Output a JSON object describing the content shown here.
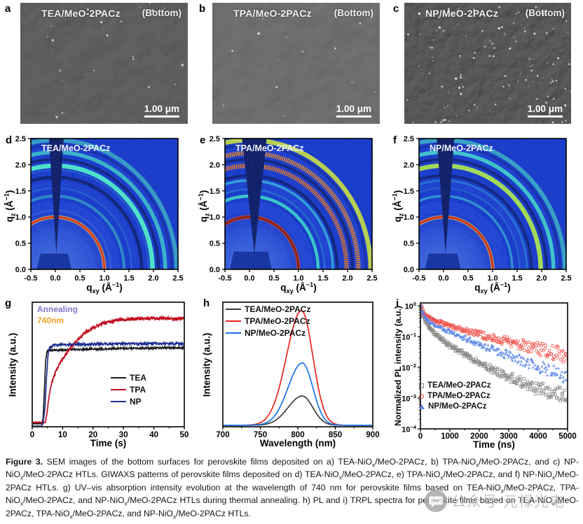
{
  "sem_row": {
    "panels": [
      {
        "letter": "a",
        "title": "TEA/MeO-2PACz",
        "corner": "(Bottom)",
        "scalebar": "1.00 μm",
        "base_freq": 0.028,
        "seed": 4,
        "light": "#8d8d8d",
        "dark": 0.28,
        "specks": 26
      },
      {
        "letter": "b",
        "title": "TPA/MeO-2PACz",
        "corner": "(Bottom)",
        "scalebar": "1.00 μm",
        "base_freq": 0.022,
        "seed": 9,
        "light": "#989898",
        "dark": 0.22,
        "specks": 14
      },
      {
        "letter": "c",
        "title": "NP/MeO-2PACz",
        "corner": "(Bottom)",
        "scalebar": "1.00 μm",
        "base_freq": 0.055,
        "seed": 14,
        "light": "#888888",
        "dark": 0.3,
        "specks": 110
      }
    ]
  },
  "giwaxs_row": {
    "xlabel": "q~xy~ (Å^−1^)",
    "ylabel": "q~z~ (Å^−1^)",
    "xticks": [
      -0.5,
      0.0,
      0.5,
      1.0,
      1.5,
      2.0,
      2.5
    ],
    "yticks": [
      0.0,
      0.5,
      1.0,
      1.5,
      2.0,
      2.5
    ],
    "background": "#1336c8",
    "panels": [
      {
        "letter": "d",
        "title": "TEA/MeO-2PACz",
        "wedge": [
          -0.13,
          0.17
        ],
        "shadow": [
          -0.38,
          0.33,
          0.3
        ],
        "rings": [
          {
            "q": 1.0,
            "c": "#e23000",
            "w": 2.6,
            "o": 1,
            "glow": "#ffc83e"
          },
          {
            "q": 1.13,
            "c": "#3a66d8",
            "w": 2.5,
            "o": 0.45
          },
          {
            "q": 1.4,
            "c": "#3ed2c2",
            "w": 4,
            "o": 0.5
          },
          {
            "q": 1.55,
            "c": "#3390d8",
            "w": 2.5,
            "o": 0.35
          },
          {
            "q": 1.76,
            "c": "#0a1d6e",
            "w": 4.5,
            "o": 0.9
          },
          {
            "q": 1.9,
            "c": "#2fa0d0",
            "w": 2.5,
            "o": 0.3
          },
          {
            "q": 1.98,
            "c": "#4ae8c8",
            "w": 6.5,
            "o": 0.95
          },
          {
            "q": 2.1,
            "c": "#0a1d6e",
            "w": 4,
            "o": 0.85
          },
          {
            "q": 2.24,
            "c": "#41d8c8",
            "w": 5.5,
            "o": 0.75
          },
          {
            "q": 2.37,
            "c": "#0c2080",
            "w": 3,
            "o": 0.6
          },
          {
            "q": 2.47,
            "c": "#3fccc0",
            "w": 6,
            "o": 0.65
          }
        ]
      },
      {
        "letter": "e",
        "title": "TPA/MeO-2PACz",
        "wedge": [
          -0.15,
          0.35
        ],
        "shadow": [
          -0.4,
          0.45,
          0.34
        ],
        "rings": [
          {
            "q": 1.0,
            "c": "#8f1600",
            "w": 2.8,
            "o": 1,
            "glow": "#d84a10"
          },
          {
            "q": 1.4,
            "c": "#37dcc8",
            "w": 4.5,
            "o": 0.85
          },
          {
            "q": 1.53,
            "c": "#2f9fd8",
            "w": 2.5,
            "o": 0.45
          },
          {
            "q": 1.7,
            "c": "#35c8da",
            "w": 3.5,
            "o": 0.7
          },
          {
            "q": 1.79,
            "c": "#0a1d6e",
            "w": 4,
            "o": 0.9
          },
          {
            "q": 1.98,
            "c": "#f07818",
            "w": 6.5,
            "o": 0.95,
            "sp": 1
          },
          {
            "q": 2.1,
            "c": "#0a1d6e",
            "w": 4,
            "o": 0.85
          },
          {
            "q": 2.22,
            "c": "#f08a20",
            "w": 6.5,
            "o": 0.95,
            "sp": 1
          },
          {
            "q": 2.37,
            "c": "#0c2080",
            "w": 3,
            "o": 0.6
          },
          {
            "q": 2.47,
            "c": "#c6de3e",
            "w": 6.5,
            "o": 0.9
          }
        ]
      },
      {
        "letter": "f",
        "title": "NP/MeO-2PACz",
        "wedge": [
          -0.14,
          0.22
        ],
        "shadow": [
          -0.38,
          0.35,
          0.3
        ],
        "rings": [
          {
            "q": 1.0,
            "c": "#d82800",
            "w": 2.6,
            "o": 1,
            "glow": "#ffbe38"
          },
          {
            "q": 1.4,
            "c": "#38c4d4",
            "w": 3.5,
            "o": 0.6
          },
          {
            "q": 1.55,
            "c": "#3390d8",
            "w": 2.5,
            "o": 0.35
          },
          {
            "q": 1.7,
            "c": "#2fa8d8",
            "w": 3,
            "o": 0.45
          },
          {
            "q": 1.79,
            "c": "#0a1d6e",
            "w": 4,
            "o": 0.85
          },
          {
            "q": 1.98,
            "c": "#a6e04c",
            "w": 6.5,
            "o": 0.95
          },
          {
            "q": 2.1,
            "c": "#0a1d6e",
            "w": 4,
            "o": 0.85
          },
          {
            "q": 2.24,
            "c": "#41d8c8",
            "w": 5.5,
            "o": 0.85
          },
          {
            "q": 2.37,
            "c": "#0c2080",
            "w": 3,
            "o": 0.55
          },
          {
            "q": 2.47,
            "c": "#3fc8c0",
            "w": 6,
            "o": 0.7
          }
        ]
      }
    ]
  },
  "chart_data": [
    {
      "panel_letter": "g",
      "type": "line",
      "xlabel": "Time (s)",
      "ylabel": "Intensity (a.u.)",
      "xlim": [
        0,
        50
      ],
      "ylim": [
        0,
        1
      ],
      "xticks": [
        0,
        10,
        20,
        30,
        40,
        50
      ],
      "annotations": [
        {
          "text": "Annealing",
          "color": "#8079cc"
        },
        {
          "text": "740nm",
          "color": "#f5a227"
        }
      ],
      "legend_position": "center-right",
      "series": [
        {
          "name": "TEA",
          "color": "#1c1c1c",
          "noise": 0.007,
          "points": [
            [
              0,
              0.025
            ],
            [
              3.2,
              0.025
            ],
            [
              3.6,
              0.07
            ],
            [
              4,
              0.3
            ],
            [
              4.4,
              0.52
            ],
            [
              4.8,
              0.6
            ],
            [
              5.5,
              0.615
            ],
            [
              8,
              0.615
            ],
            [
              12,
              0.62
            ],
            [
              16,
              0.62
            ],
            [
              20,
              0.625
            ],
            [
              25,
              0.625
            ],
            [
              30,
              0.63
            ],
            [
              35,
              0.63
            ],
            [
              40,
              0.632
            ],
            [
              45,
              0.634
            ],
            [
              50,
              0.634
            ]
          ]
        },
        {
          "name": "TPA",
          "color": "#c00a1e",
          "noise": 0.011,
          "points": [
            [
              0,
              0.035
            ],
            [
              4.3,
              0.035
            ],
            [
              4.8,
              0.1
            ],
            [
              5.4,
              0.22
            ],
            [
              6,
              0.32
            ],
            [
              7,
              0.4
            ],
            [
              8,
              0.46
            ],
            [
              9,
              0.51
            ],
            [
              10,
              0.545
            ],
            [
              12,
              0.615
            ],
            [
              14,
              0.675
            ],
            [
              16,
              0.725
            ],
            [
              18,
              0.765
            ],
            [
              20,
              0.795
            ],
            [
              22,
              0.818
            ],
            [
              25,
              0.842
            ],
            [
              28,
              0.856
            ],
            [
              31,
              0.862
            ],
            [
              34,
              0.868
            ],
            [
              37,
              0.87
            ],
            [
              40,
              0.868
            ],
            [
              43,
              0.872
            ],
            [
              46,
              0.868
            ],
            [
              50,
              0.87
            ]
          ]
        },
        {
          "name": "NP",
          "color": "#1e2f8f",
          "noise": 0.009,
          "points": [
            [
              0,
              0.005
            ],
            [
              3.1,
              0.005
            ],
            [
              3.6,
              0.03
            ],
            [
              4.2,
              0.16
            ],
            [
              4.7,
              0.4
            ],
            [
              5.2,
              0.58
            ],
            [
              5.8,
              0.64
            ],
            [
              7,
              0.655
            ],
            [
              9,
              0.658
            ],
            [
              12,
              0.66
            ],
            [
              16,
              0.662
            ],
            [
              20,
              0.664
            ],
            [
              25,
              0.664
            ],
            [
              30,
              0.668
            ],
            [
              35,
              0.665
            ],
            [
              40,
              0.668
            ],
            [
              45,
              0.668
            ],
            [
              50,
              0.668
            ]
          ]
        }
      ]
    },
    {
      "panel_letter": "h",
      "type": "line",
      "xlabel": "Wavelength (nm)",
      "ylabel": "Intensity (a.u.)",
      "xlim": [
        700,
        900
      ],
      "ylim": [
        0,
        1
      ],
      "xticks": [
        700,
        750,
        800,
        850,
        900
      ],
      "legend_position": "top-left",
      "series": [
        {
          "name": "TEA/MeO-2PACz",
          "color": "#3c3c3c",
          "peak_center_nm": 806,
          "sigma_left_nm": 19,
          "sigma_right_nm": 14,
          "peak_height": 0.235
        },
        {
          "name": "TPA/MeO-2PACz",
          "color": "#e8251c",
          "peak_center_nm": 805,
          "sigma_left_nm": 20,
          "sigma_right_nm": 15,
          "peak_height": 0.92
        },
        {
          "name": "NP/MeO-2PACz",
          "color": "#1873e8",
          "peak_center_nm": 806,
          "sigma_left_nm": 19,
          "sigma_right_nm": 14,
          "peak_height": 0.5
        }
      ]
    },
    {
      "panel_letter": "i",
      "type": "scatter",
      "xlabel": "Time (ns)",
      "ylabel": "Normalized PL intensity (a.u.)",
      "xlim": [
        0,
        5000
      ],
      "xticks": [
        0,
        1000,
        2000,
        3000,
        4000,
        5000
      ],
      "yscale": "log",
      "ylim": [
        0.0001,
        1
      ],
      "ytick_labels": [
        "10^0^",
        "10^−1^",
        "10^−2^",
        "10^−3^",
        "10^−4^"
      ],
      "legend_position": "lower-left",
      "series": [
        {
          "name": "TEA/MeO-2PACz",
          "marker": "square",
          "color": "#848484",
          "decay": [
            [
              5,
              1.0
            ],
            [
              50,
              0.6
            ],
            [
              100,
              0.42
            ],
            [
              200,
              0.28
            ],
            [
              300,
              0.2
            ],
            [
              500,
              0.12
            ],
            [
              700,
              0.085
            ],
            [
              1000,
              0.05
            ],
            [
              1500,
              0.027
            ],
            [
              2000,
              0.014
            ],
            [
              2500,
              0.008
            ],
            [
              3000,
              0.0048
            ],
            [
              3500,
              0.003
            ],
            [
              4000,
              0.002
            ],
            [
              4500,
              0.0016
            ],
            [
              5000,
              0.0012
            ]
          ]
        },
        {
          "name": "TPA/MeO-2PACz",
          "marker": "circle",
          "color": "#ee4f47",
          "decay": [
            [
              5,
              1.0
            ],
            [
              50,
              0.75
            ],
            [
              100,
              0.6
            ],
            [
              200,
              0.47
            ],
            [
              300,
              0.4
            ],
            [
              500,
              0.33
            ],
            [
              700,
              0.28
            ],
            [
              1000,
              0.22
            ],
            [
              1500,
              0.16
            ],
            [
              2000,
              0.12
            ],
            [
              2500,
              0.09
            ],
            [
              3000,
              0.068
            ],
            [
              3500,
              0.052
            ],
            [
              4000,
              0.04
            ],
            [
              4500,
              0.031
            ],
            [
              5000,
              0.024
            ]
          ]
        },
        {
          "name": "NP/MeO-2PACz",
          "marker": "triangle",
          "color": "#5b87e8",
          "decay": [
            [
              5,
              1.0
            ],
            [
              50,
              0.68
            ],
            [
              100,
              0.52
            ],
            [
              200,
              0.38
            ],
            [
              300,
              0.31
            ],
            [
              500,
              0.24
            ],
            [
              700,
              0.19
            ],
            [
              1000,
              0.14
            ],
            [
              1500,
              0.09
            ],
            [
              2000,
              0.058
            ],
            [
              2500,
              0.038
            ],
            [
              3000,
              0.024
            ],
            [
              3500,
              0.016
            ],
            [
              4000,
              0.011
            ],
            [
              4500,
              0.0075
            ],
            [
              5000,
              0.0052
            ]
          ]
        }
      ]
    }
  ],
  "caption": {
    "label": "Figure 3.",
    "text": " SEM images of the bottom surfaces for perovskite films deposited on a) TEA-NiO~x~/MeO-2PACz, b) TPA-NiO~x~/MeO-2PACz, and c) NP-NiO~x~/MeO-2PACz HTLs. GIWAXS patterns of perovskite films deposited on d) TEA-NiO~x~/MeO-2PACz, e) TPA-NiO~x~/MeO-2PACz, and f) NP-NiO~x~/MeO-2PACz HTLs. g) UV–vis absorption intensity evolution at the wavelength of 740 nm for perovskite films based on TEA-NiO~x~/MeO-2PACz, TPA-NiO~x~/MeO-2PACz, and NP-NiO~x~/MeO-2PACz HTLs during thermal annealing. h) PL and i) TRPL spectra for perovskite films based on TEA-NiO~x~/MeO-2PACz, TPA-NiO~x~/MeO-2PACz, and NP-NiO~x~/MeO-2PACz HTLs."
  },
  "watermark": {
    "icon": "wechat-logo-icon",
    "text": "公众号·元禄光电"
  }
}
